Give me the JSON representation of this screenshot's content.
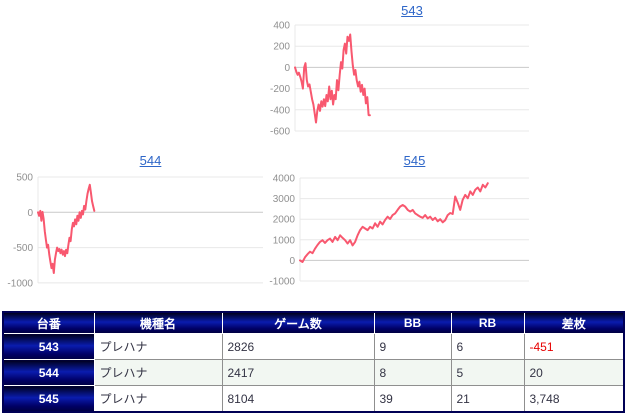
{
  "colors": {
    "line": "#f8586f",
    "grid": "#e8e8e8",
    "zero_line": "#c9c9c9",
    "axis_label": "#909090",
    "title_link": "#2e66c8",
    "table_border": "#000055",
    "header_text": "#ffffff",
    "cell_text": "#333344",
    "negative_value": "#e60000",
    "row_alt_bg": "#f2f7f2"
  },
  "chart_data": [
    {
      "type": "line",
      "title": "543",
      "ylim": [
        -600,
        400
      ],
      "yticks": [
        400,
        200,
        0,
        -200,
        -400,
        -600
      ],
      "x_span_fraction": 0.32,
      "values": [
        0,
        -40,
        -70,
        -50,
        -90,
        -135,
        -200,
        0,
        40,
        -120,
        -180,
        -160,
        -230,
        -300,
        -350,
        -435,
        -520,
        -410,
        -350,
        -410,
        -320,
        -370,
        -300,
        -365,
        -260,
        -320,
        -180,
        -300,
        -220,
        -350,
        -260,
        -300,
        -120,
        -215,
        -70,
        50,
        -10,
        165,
        225,
        130,
        290,
        250,
        310,
        150,
        20,
        -70,
        -25,
        -120,
        -180,
        -135,
        -230,
        -165,
        -260,
        -200,
        -340,
        -280,
        -450,
        -451
      ]
    },
    {
      "type": "line",
      "title": "544",
      "ylim": [
        -1000,
        500
      ],
      "yticks": [
        500,
        0,
        -500,
        -1000
      ],
      "x_span_fraction": 0.25,
      "values": [
        0,
        -50,
        20,
        -120,
        5,
        -90,
        -270,
        -390,
        -500,
        -460,
        -600,
        -700,
        -790,
        -730,
        -860,
        -670,
        -580,
        -500,
        -550,
        -520,
        -580,
        -530,
        -600,
        -550,
        -620,
        -530,
        -580,
        -460,
        -360,
        -410,
        -240,
        -150,
        -200,
        -100,
        -170,
        -50,
        -120,
        0,
        -80,
        20,
        -30,
        90,
        40,
        160,
        260,
        330,
        390,
        280,
        160,
        90,
        20
      ]
    },
    {
      "type": "line",
      "title": "545",
      "ylim": [
        -1000,
        4000
      ],
      "yticks": [
        4000,
        3000,
        2000,
        1000,
        0,
        -1000
      ],
      "x_span_fraction": 0.82,
      "values": [
        0,
        -80,
        150,
        300,
        420,
        350,
        570,
        750,
        900,
        980,
        850,
        980,
        1060,
        900,
        1140,
        980,
        1220,
        1090,
        980,
        820,
        980,
        730,
        900,
        1220,
        1470,
        1630,
        1550,
        1470,
        1630,
        1550,
        1800,
        1630,
        1880,
        1750,
        1960,
        2120,
        2010,
        2200,
        2280,
        2450,
        2610,
        2690,
        2610,
        2450,
        2370,
        2450,
        2280,
        2200,
        2120,
        2070,
        2200,
        2040,
        2120,
        1960,
        2070,
        1900,
        2000,
        1850,
        1950,
        2200,
        2300,
        2250,
        3100,
        2800,
        2450,
        2940,
        3180,
        3020,
        3350,
        3180,
        3430,
        3540,
        3350,
        3670,
        3540,
        3748
      ]
    }
  ],
  "table": {
    "headers": [
      "台番",
      "機種名",
      "ゲーム数",
      "BB",
      "RB",
      "差枚"
    ],
    "rows": [
      {
        "no": "543",
        "model": "プレハナ",
        "games": "2826",
        "bb": "9",
        "rb": "6",
        "diff": "-451"
      },
      {
        "no": "544",
        "model": "プレハナ",
        "games": "2417",
        "bb": "8",
        "rb": "5",
        "diff": "20"
      },
      {
        "no": "545",
        "model": "プレハナ",
        "games": "8104",
        "bb": "39",
        "rb": "21",
        "diff": "3,748"
      }
    ]
  }
}
